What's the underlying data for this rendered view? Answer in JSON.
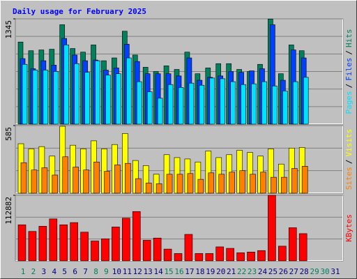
{
  "chart_data": [
    {
      "type": "bar",
      "title": "Daily usage for February 2025",
      "legend_separator": "/",
      "ylim": [
        0,
        1345
      ],
      "yticks": [
        1345
      ],
      "grid": true,
      "series": [
        {
          "name": "Hits",
          "color": "#00805c",
          "values": [
            1049,
            938,
            948,
            957,
            1270,
            966,
            920,
            1012,
            810,
            846,
            1187,
            883,
            727,
            672,
            745,
            699,
            920,
            644,
            718,
            773,
            773,
            699,
            672,
            764,
            1343,
            644,
            1012,
            938,
            null,
            null,
            null
          ]
        },
        {
          "name": "Files",
          "color": "#0040ff",
          "values": [
            837,
            708,
            810,
            754,
            1095,
            883,
            810,
            819,
            690,
            718,
            1021,
            800,
            644,
            644,
            644,
            616,
            846,
            561,
            598,
            616,
            672,
            662,
            681,
            708,
            1270,
            561,
            948,
            846,
            null,
            null,
            null
          ]
        },
        {
          "name": "Pages",
          "color": "#00e0ff",
          "values": [
            764,
            690,
            690,
            672,
            1012,
            773,
            662,
            810,
            626,
            644,
            846,
            543,
            414,
            331,
            506,
            469,
            524,
            497,
            589,
            580,
            543,
            506,
            515,
            543,
            488,
            423,
            543,
            598,
            null,
            null,
            null
          ]
        }
      ]
    },
    {
      "type": "bar",
      "legend_separator": "/",
      "ylim": [
        0,
        585
      ],
      "yticks": [
        585
      ],
      "grid": true,
      "series": [
        {
          "name": "Visits",
          "color": "#ffff00",
          "values": [
            428,
            384,
            403,
            321,
            579,
            415,
            384,
            453,
            384,
            421,
            516,
            283,
            239,
            164,
            333,
            308,
            296,
            270,
            365,
            308,
            333,
            371,
            352,
            321,
            384,
            252,
            390,
            396,
            null,
            null,
            null
          ]
        },
        {
          "name": "Sites",
          "color": "#ff8000",
          "values": [
            264,
            201,
            220,
            157,
            315,
            226,
            201,
            270,
            189,
            245,
            258,
            126,
            88,
            82,
            164,
            164,
            170,
            120,
            176,
            164,
            182,
            195,
            164,
            182,
            138,
            138,
            214,
            233,
            null,
            null,
            null
          ]
        }
      ]
    },
    {
      "type": "bar",
      "ylim": [
        0,
        112882
      ],
      "yticks": [
        112882
      ],
      "grid": true,
      "categories": [
        "1",
        "2",
        "3",
        "4",
        "5",
        "6",
        "7",
        "8",
        "9",
        "10",
        "11",
        "12",
        "13",
        "14",
        "15",
        "16",
        "17",
        "18",
        "19",
        "20",
        "21",
        "22",
        "23",
        "24",
        "25",
        "26",
        "27",
        "28",
        "29",
        "30",
        "31"
      ],
      "category_colors": [
        "#00805c",
        "#00805c",
        "#000080",
        "#000080",
        "#000080",
        "#000080",
        "#000080",
        "#00805c",
        "#00805c",
        "#000080",
        "#000080",
        "#000080",
        "#000080",
        "#000080",
        "#00805c",
        "#00805c",
        "#000080",
        "#000080",
        "#000080",
        "#000080",
        "#000080",
        "#00805c",
        "#00805c",
        "#000080",
        "#000080",
        "#000080",
        "#000080",
        "#000080",
        "#00805c",
        "#00805c",
        "#000080"
      ],
      "series": [
        {
          "name": "KBytes",
          "color": "#ff0000",
          "values": [
            62132,
            50720,
            59596,
            72276,
            62132,
            65936,
            49452,
            34236,
            38040,
            58328,
            73544,
            84956,
            35504,
            39308,
            20288,
            12680,
            45648,
            12680,
            12680,
            24092,
            21556,
            13948,
            15216,
            17752,
            112882,
            25360,
            57060,
            46916,
            null,
            null,
            null
          ]
        }
      ]
    }
  ]
}
